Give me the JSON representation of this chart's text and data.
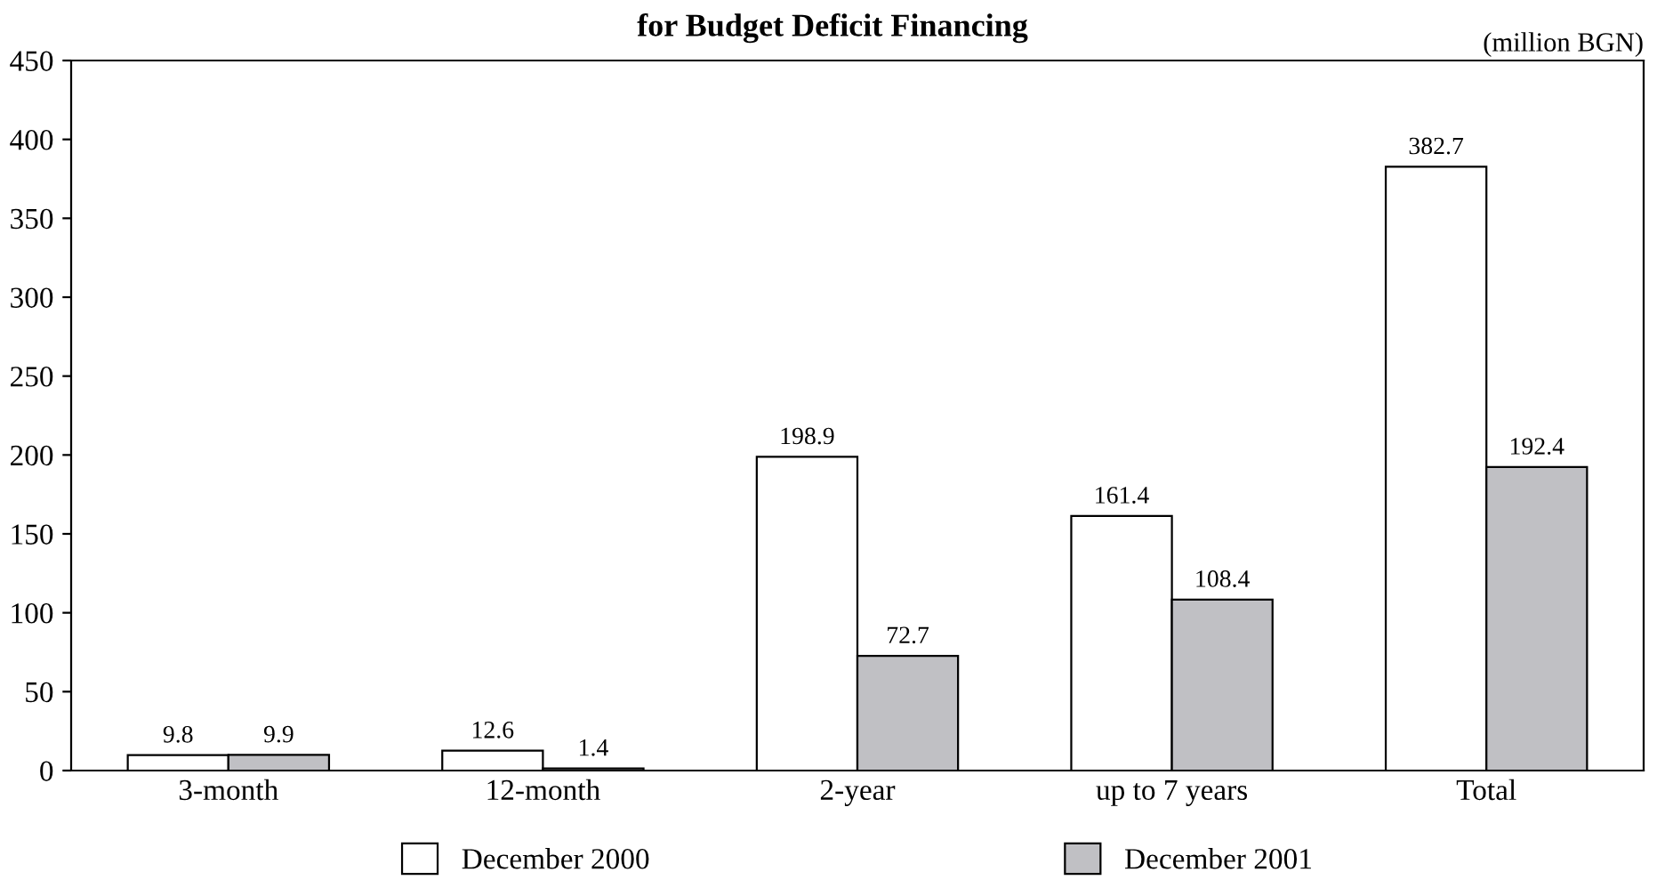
{
  "chart_data": {
    "type": "bar",
    "title": "for Budget Deficit Financing",
    "annotations": [
      "(million BGN)"
    ],
    "categories": [
      "3-month",
      "12-month",
      "2-year",
      "up to 7 years",
      "Total"
    ],
    "series": [
      {
        "name": "December 2000",
        "color": "#ffffff",
        "values": [
          9.8,
          12.6,
          198.9,
          161.4,
          382.7
        ]
      },
      {
        "name": "December 2001",
        "color": "#c0c0c4",
        "values": [
          9.9,
          1.4,
          72.7,
          108.4,
          192.4
        ]
      }
    ],
    "ylim": [
      0,
      450
    ],
    "yticks": [
      0,
      50,
      100,
      150,
      200,
      250,
      300,
      350,
      400,
      450
    ],
    "data_labels": true,
    "legend": "bottom",
    "grid": false
  }
}
